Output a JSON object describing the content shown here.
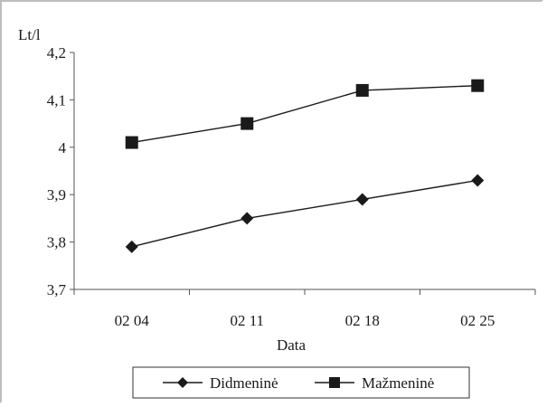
{
  "chart_data": {
    "type": "line",
    "title": "",
    "ylabel": "Lt/l",
    "xlabel": "Data",
    "categories": [
      "02 04",
      "02 11",
      "02 18",
      "02 25"
    ],
    "ylim": [
      3.7,
      4.2
    ],
    "yticks": [
      3.7,
      3.8,
      3.9,
      4.0,
      4.1,
      4.2
    ],
    "ytick_labels": [
      "3,7",
      "3,8",
      "3,9",
      "4",
      "4,1",
      "4,2"
    ],
    "grid": false,
    "legend_position": "bottom",
    "series": [
      {
        "name": "Didmeninė",
        "marker": "diamond",
        "color": "#1a1a1a",
        "values": [
          3.79,
          3.85,
          3.89,
          3.93
        ]
      },
      {
        "name": "Mažmeninė",
        "marker": "square",
        "color": "#1a1a1a",
        "values": [
          4.01,
          4.05,
          4.12,
          4.13
        ]
      }
    ]
  }
}
